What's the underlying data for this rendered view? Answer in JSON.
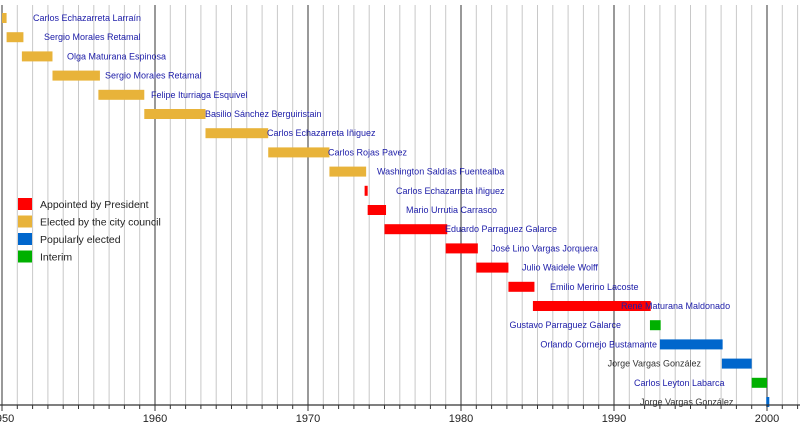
{
  "chart_data": {
    "type": "timeline",
    "title": "",
    "xlabel": "",
    "ylabel": "",
    "xlim": [
      1950,
      2002
    ],
    "grid": {
      "major_every_years": 10,
      "minor_every_years": 1
    },
    "x_ticks": [
      {
        "value": 1950,
        "label": "1950"
      },
      {
        "value": 1960,
        "label": "1960"
      },
      {
        "value": 1970,
        "label": "1970"
      },
      {
        "value": 1980,
        "label": "1980"
      },
      {
        "value": 1990,
        "label": "1990"
      },
      {
        "value": 2000,
        "label": "2000"
      }
    ],
    "legend": {
      "placement": "left",
      "items": [
        {
          "key": "appointed",
          "label": "Appointed by President",
          "color": "#ff0000"
        },
        {
          "key": "council",
          "label": "Elected by the city council",
          "color": "#e8b33a"
        },
        {
          "key": "popular",
          "label": "Popularly elected",
          "color": "#0066cc"
        },
        {
          "key": "interim",
          "label": "Interim",
          "color": "#00b000"
        }
      ]
    },
    "bars": [
      {
        "name": "Carlos Echazarreta Larraín",
        "start": 1950.0,
        "end": 1950.3,
        "type": "council",
        "linked": true
      },
      {
        "name": "Sergio Morales Retamal",
        "start": 1950.3,
        "end": 1951.4,
        "type": "council",
        "linked": true
      },
      {
        "name": "Olga Maturana Espinosa",
        "start": 1951.3,
        "end": 1953.3,
        "type": "council",
        "linked": true
      },
      {
        "name": "Sergio Morales Retamal",
        "start": 1953.3,
        "end": 1956.4,
        "type": "council",
        "linked": true
      },
      {
        "name": "Felipe Iturriaga Esquivel",
        "start": 1956.3,
        "end": 1959.3,
        "type": "council",
        "linked": true
      },
      {
        "name": "Basilio Sánchez Berguiristain",
        "start": 1959.3,
        "end": 1963.3,
        "type": "council",
        "linked": true
      },
      {
        "name": "Carlos Echazarreta Iñiguez",
        "start": 1963.3,
        "end": 1967.4,
        "type": "council",
        "linked": true
      },
      {
        "name": "Carlos Rojas Pavez",
        "start": 1967.4,
        "end": 1971.4,
        "type": "council",
        "linked": true
      },
      {
        "name": "Washington Saldías Fuentealba",
        "start": 1971.4,
        "end": 1973.8,
        "type": "council",
        "linked": true
      },
      {
        "name": "Carlos Echazarreta Iñiguez",
        "start": 1973.7,
        "end": 1973.9,
        "type": "appointed",
        "linked": true
      },
      {
        "name": "Mario Urrutia Carrasco",
        "start": 1973.9,
        "end": 1975.1,
        "type": "appointed",
        "linked": true
      },
      {
        "name": "Eduardo Parraguez Galarce",
        "start": 1975.0,
        "end": 1979.1,
        "type": "appointed",
        "linked": true
      },
      {
        "name": "José Lino Vargas Jorquera",
        "start": 1979.0,
        "end": 1981.1,
        "type": "appointed",
        "linked": true
      },
      {
        "name": "Julio Waidele Wolff",
        "start": 1981.0,
        "end": 1983.1,
        "type": "appointed",
        "linked": true
      },
      {
        "name": "Emilio Merino Lacoste",
        "start": 1983.1,
        "end": 1984.8,
        "type": "appointed",
        "linked": true
      },
      {
        "name": "René Maturana Maldonado",
        "start": 1984.7,
        "end": 1992.4,
        "type": "appointed",
        "linked": true
      },
      {
        "name": "Gustavo Parraguez Galarce",
        "start": 1992.35,
        "end": 1993.05,
        "type": "interim",
        "linked": true
      },
      {
        "name": "Orlando Cornejo Bustamante",
        "start": 1993.0,
        "end": 1997.1,
        "type": "popular",
        "linked": true
      },
      {
        "name": "Jorge Vargas González",
        "start": 1997.05,
        "end": 1999.0,
        "type": "popular",
        "linked": false
      },
      {
        "name": "Carlos Leyton Labarca",
        "start": 1999.0,
        "end": 2000.0,
        "type": "interim",
        "linked": true
      },
      {
        "name": "Jorge Vargas González",
        "start": 1999.95,
        "end": 2000.15,
        "type": "popular",
        "linked": false
      }
    ],
    "colors": {
      "link_text": "#1c1ca8",
      "plain_text": "#333333",
      "major_grid": "#333333",
      "minor_grid": "#c8c8c8"
    }
  }
}
